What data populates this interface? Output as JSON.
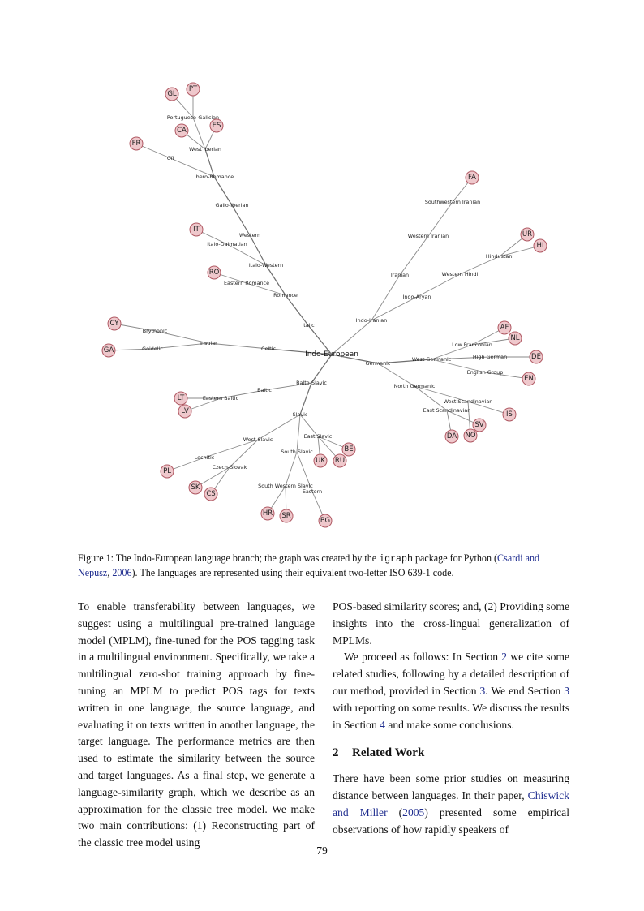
{
  "figure": {
    "root_label": "Indo-European",
    "intermediate_labels": [
      "Portuguese-Galician",
      "West Iberian",
      "Oïl",
      "Ibero-Romance",
      "Gallo-Iberian",
      "Western",
      "Italo-Dalmatian",
      "Italo-Western",
      "Eastern Romance",
      "Romance",
      "Italic",
      "Brythonic",
      "Goidelic",
      "Insular",
      "Celtic",
      "Southwestern Iranian",
      "Western Iranian",
      "Iranian",
      "Indo-Iranian",
      "Hindustani",
      "Western Hindi",
      "Indo-Aryan",
      "Low Franconian",
      "West Germanic",
      "Germanic",
      "High German",
      "English Group",
      "North Germanic",
      "West Scandinavian",
      "East Scandinavian",
      "Balto-Slavic",
      "Baltic",
      "Eastern Baltic",
      "Slavic",
      "West Slavic",
      "Lechitic",
      "Czech-Slovak",
      "East Slavic",
      "South Slavic",
      "South Western Slavic",
      "Eastern"
    ],
    "language_codes": [
      "GL",
      "PT",
      "CA",
      "ES",
      "FR",
      "IT",
      "RO",
      "CY",
      "GA",
      "LT",
      "LV",
      "PL",
      "SK",
      "CS",
      "HR",
      "SR",
      "BG",
      "UK",
      "RU",
      "BE",
      "FA",
      "UR",
      "HI",
      "AF",
      "NL",
      "DE",
      "EN",
      "IS",
      "SV",
      "NO",
      "DA"
    ]
  },
  "caption": {
    "prefix": "Figure 1: The Indo-European language branch; the graph was created by the ",
    "code": "igraph",
    "middle": " package for Python (",
    "cite": "Csardi and Nepusz",
    "cite_sep": ", ",
    "cite_year": "2006",
    "suffix": "). The languages are represented using their equivalent two-letter ISO 639-1 code."
  },
  "left_column": {
    "paragraph": "To enable transferability between languages, we suggest using a multilingual pre-trained language model (MPLM), fine-tuned for the POS tagging task in a multilingual environment. Specifically, we take a multilingual zero-shot training approach by fine-tuning an MPLM to predict POS tags for texts written in one language, the source language, and evaluating it on texts written in another language, the target language. The performance metrics are then used to estimate the similarity between the source and target languages. As a final step, we generate a language-similarity graph, which we describe as an approximation for the classic tree model. We make two main contributions: (1) Reconstructing part of the classic tree model using"
  },
  "right_column": {
    "p1": "POS-based similarity scores; and, (2) Providing some insights into the cross-lingual generalization of MPLMs.",
    "p2_a": "We proceed as follows: In Section ",
    "p2_ref1": "2",
    "p2_b": " we cite some related studies, following by a detailed description of our method, provided in Section ",
    "p2_ref2": "3",
    "p2_c": ". We end Section ",
    "p2_ref3": "3",
    "p2_d": " with reporting on some results. We discuss the results in Section ",
    "p2_ref4": "4",
    "p2_e": " and make some conclusions.",
    "section_number": "2",
    "section_title": "Related Work",
    "p3_a": "There have been some prior studies on measuring distance between languages. In their paper, ",
    "p3_cite": "Chiswick and Miller",
    "p3_cite_open": " (",
    "p3_cite_year": "2005",
    "p3_cite_close": ")",
    "p3_b": " presented some empirical observations of how rapidly speakers of"
  },
  "page_number": "79"
}
